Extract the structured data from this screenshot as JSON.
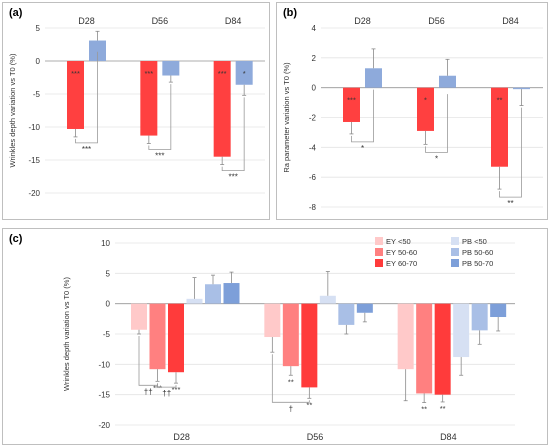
{
  "chart_data": [
    {
      "panel_label": "(a)",
      "type": "bar",
      "ylabel": "Wrinkles depth variation vs T0 (%)",
      "ylim": [
        -20,
        5
      ],
      "yticks": [
        5,
        0,
        -5,
        -10,
        -15,
        -20
      ],
      "categories": [
        "D28",
        "D56",
        "D84"
      ],
      "grid": true,
      "series": [
        {
          "color": "#ff4040",
          "values": [
            -10.3,
            -11.3,
            -14.5
          ],
          "err": [
            1.2,
            1.2,
            1.2
          ],
          "labels": [
            "***",
            "***",
            "***"
          ]
        },
        {
          "color": "#8eaadb",
          "values": [
            3.1,
            -2.2,
            -3.6
          ],
          "err": [
            1.4,
            1.0,
            1.6
          ],
          "labels": [
            "",
            "",
            "*"
          ]
        }
      ],
      "brackets": [
        {
          "label": "***",
          "category": 0,
          "from": 0,
          "to": 1
        },
        {
          "label": "***",
          "category": 1,
          "from": 0,
          "to": 1
        },
        {
          "label": "***",
          "category": 2,
          "from": 0,
          "to": 1
        }
      ]
    },
    {
      "panel_label": "(b)",
      "type": "bar",
      "ylabel": "Ra parameter variation vs T0 (%)",
      "ylim": [
        -8,
        4
      ],
      "yticks": [
        4,
        2,
        0,
        -2,
        -4,
        -6,
        -8
      ],
      "categories": [
        "D28",
        "D56",
        "D84"
      ],
      "grid": true,
      "series": [
        {
          "color": "#ff4040",
          "values": [
            -2.3,
            -2.9,
            -5.3
          ],
          "err": [
            0.8,
            0.9,
            1.5
          ],
          "labels": [
            "***",
            "*",
            "**"
          ]
        },
        {
          "color": "#8eaadb",
          "values": [
            1.3,
            0.8,
            -0.1
          ],
          "err": [
            1.3,
            1.1,
            1.1
          ],
          "labels": [
            "",
            "",
            ""
          ]
        }
      ],
      "brackets": [
        {
          "label": "*",
          "category": 0,
          "from": 0,
          "to": 1
        },
        {
          "label": "*",
          "category": 1,
          "from": 0,
          "to": 1
        },
        {
          "label": "**",
          "category": 2,
          "from": 0,
          "to": 1
        }
      ]
    },
    {
      "panel_label": "(c)",
      "type": "bar",
      "ylabel": "Wrinkles depth variation vs T0 (%)",
      "ylim": [
        -20,
        10
      ],
      "yticks": [
        10,
        5,
        0,
        -5,
        -10,
        -15,
        -20
      ],
      "categories": [
        "D28",
        "D56",
        "D84"
      ],
      "grid": true,
      "legend_position": "top-right",
      "series": [
        {
          "name": "EY <50",
          "color": "#ffc9c9",
          "values": [
            -4.3,
            -5.5,
            -10.8
          ],
          "err": [
            0.7,
            2.5,
            5.2
          ],
          "labels": [
            "",
            "",
            ""
          ]
        },
        {
          "name": "EY 50-60",
          "color": "#ff8080",
          "values": [
            -10.8,
            -10.3,
            -14.8
          ],
          "err": [
            2.0,
            1.5,
            1.5
          ],
          "labels": [
            "***",
            "**",
            "**"
          ]
        },
        {
          "name": "EY 60-70",
          "color": "#ff3b3b",
          "values": [
            -11.3,
            -13.8,
            -15.0
          ],
          "err": [
            1.8,
            1.8,
            1.2
          ],
          "labels": [
            "***",
            "**",
            "**"
          ]
        },
        {
          "name": "PB <50",
          "color": "#d6e0f3",
          "values": [
            0.8,
            1.3,
            -8.8
          ],
          "err": [
            3.5,
            4.0,
            3.0
          ],
          "labels": [
            "",
            "",
            ""
          ]
        },
        {
          "name": "PB 50-60",
          "color": "#a9bfe6",
          "values": [
            3.2,
            -3.5,
            -4.4
          ],
          "err": [
            1.5,
            1.5,
            2.3
          ],
          "labels": [
            "",
            "",
            ""
          ]
        },
        {
          "name": "PB 50-70",
          "color": "#7d9fd9",
          "values": [
            3.4,
            -1.5,
            -2.2
          ],
          "err": [
            1.8,
            1.5,
            2.3
          ],
          "labels": [
            "",
            "",
            ""
          ]
        }
      ],
      "brackets": [
        {
          "label": "††",
          "category": 0,
          "from": 0,
          "to": 1
        },
        {
          "label": "††",
          "category": 0,
          "from": 1,
          "to": 2
        },
        {
          "label": "†",
          "category": 1,
          "from": 0,
          "to": 2
        }
      ]
    }
  ]
}
